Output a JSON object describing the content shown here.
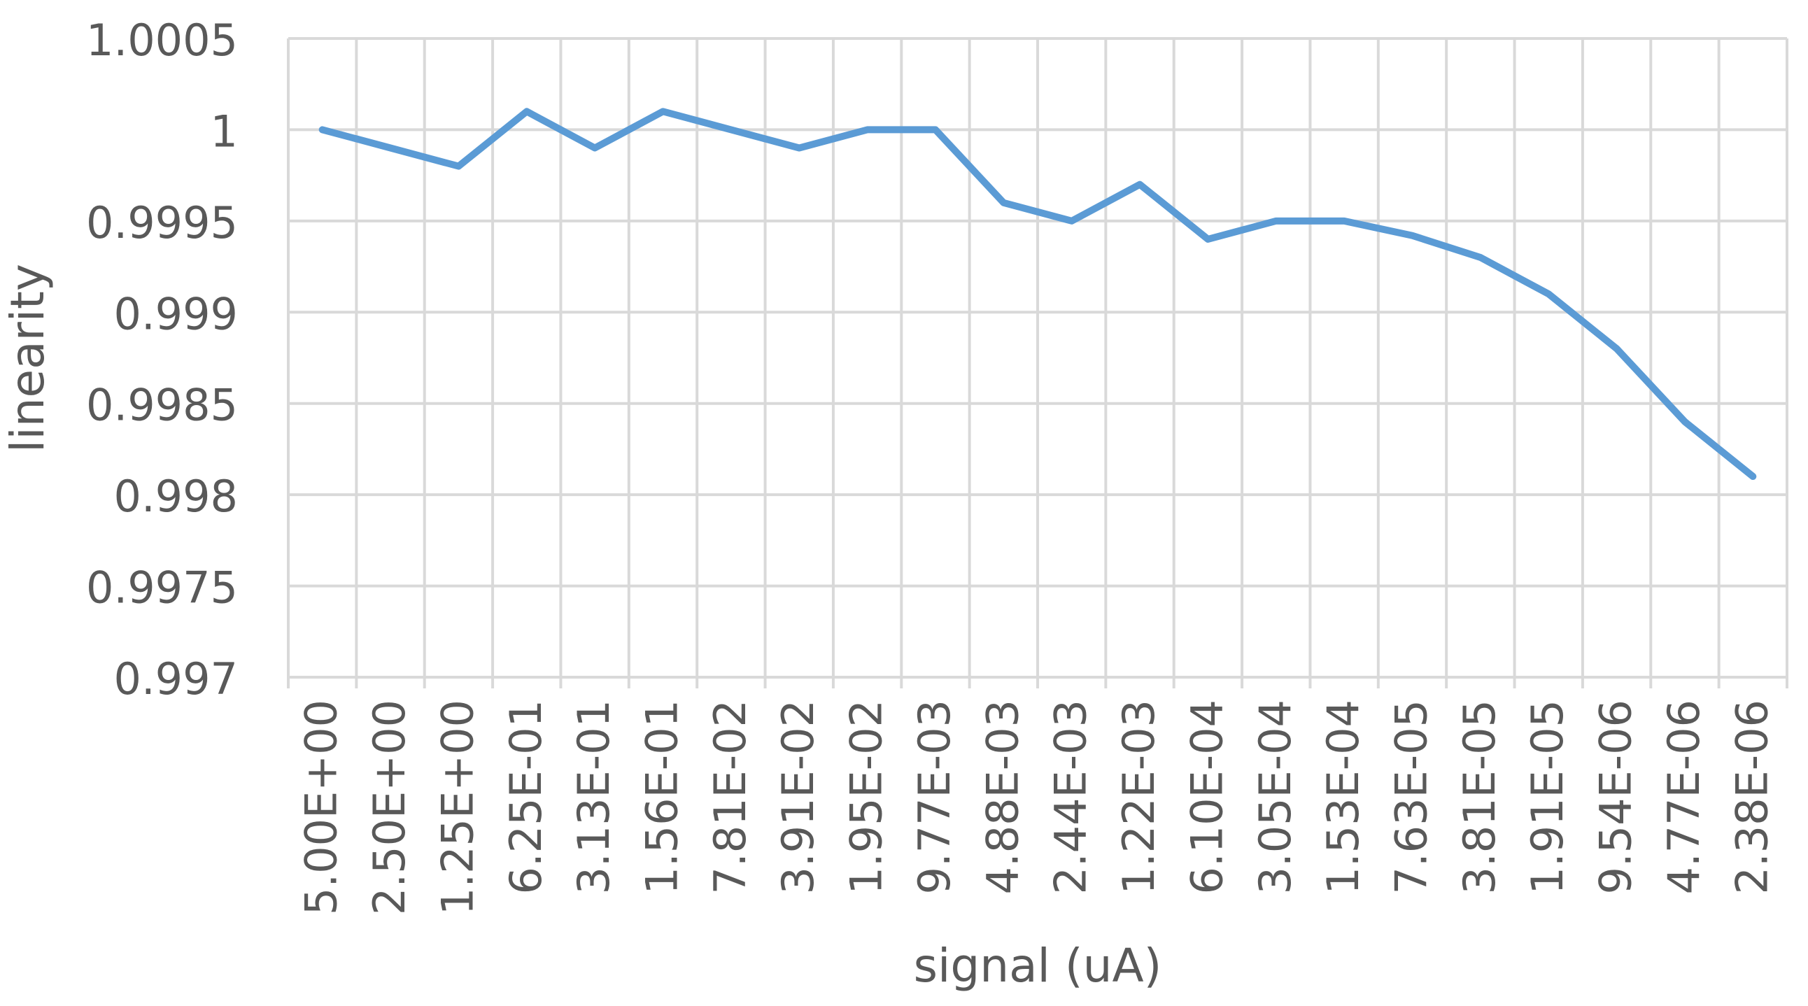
{
  "chart_data": {
    "type": "line",
    "title": "",
    "xlabel": "signal (uA)",
    "ylabel": "linearity",
    "ylim": [
      0.997,
      1.0005
    ],
    "yticks": [
      "0.997",
      "0.9975",
      "0.998",
      "0.9985",
      "0.999",
      "0.9995",
      "1",
      "1.0005"
    ],
    "grid": true,
    "legend": "none",
    "categories": [
      "5.00E+00",
      "2.50E+00",
      "1.25E+00",
      "6.25E-01",
      "3.13E-01",
      "1.56E-01",
      "7.81E-02",
      "3.91E-02",
      "1.95E-02",
      "9.77E-03",
      "4.88E-03",
      "2.44E-03",
      "1.22E-03",
      "6.10E-04",
      "3.05E-04",
      "1.53E-04",
      "7.63E-05",
      "3.81E-05",
      "1.91E-05",
      "9.54E-06",
      "4.77E-06",
      "2.38E-06"
    ],
    "series": [
      {
        "values": [
          1.0,
          0.9999,
          0.9998,
          1.0001,
          0.9999,
          1.0001,
          1.0,
          0.9999,
          1.0,
          1.0,
          0.9996,
          0.9995,
          0.9997,
          0.9994,
          0.9995,
          0.9995,
          0.99942,
          0.9993,
          0.9991,
          0.9988,
          0.9984,
          0.9981
        ],
        "color": "#5b9bd5"
      }
    ],
    "colors": {
      "grid": "#d9d9d9",
      "text": "#595959",
      "line": "#5b9bd5"
    }
  }
}
